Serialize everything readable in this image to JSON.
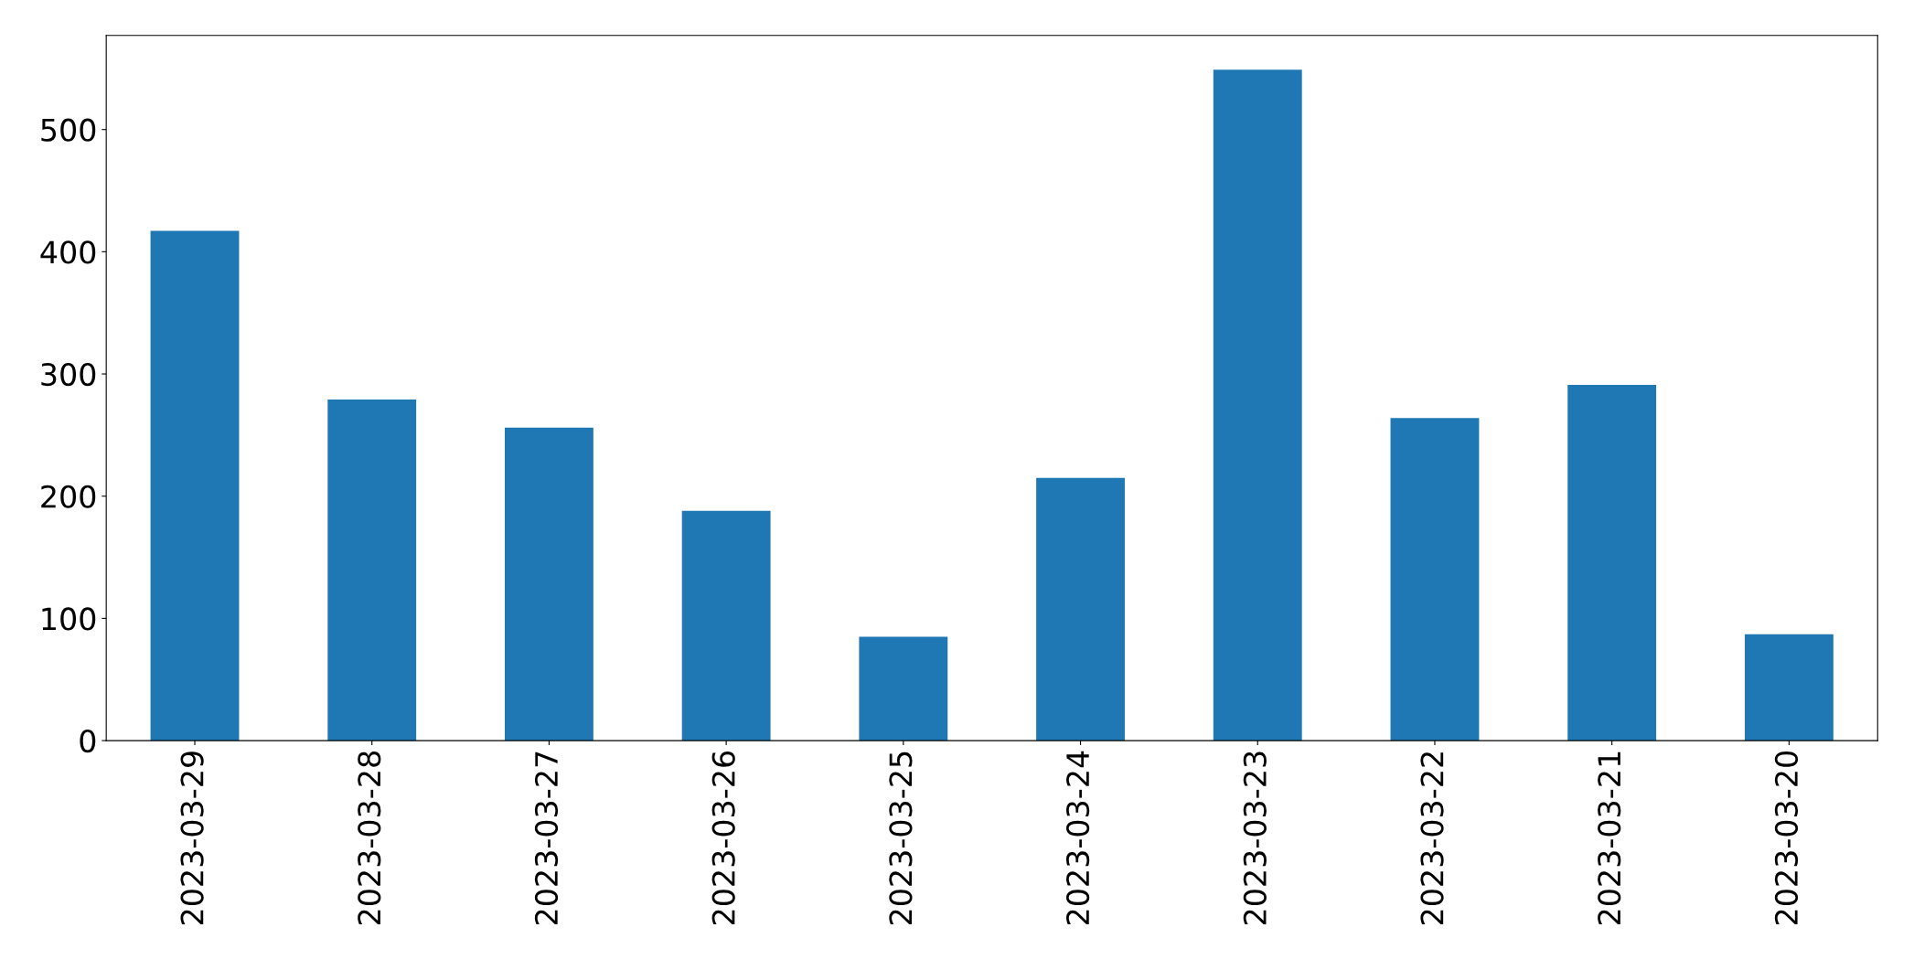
{
  "chart_data": {
    "type": "bar",
    "categories": [
      "2023-03-29",
      "2023-03-28",
      "2023-03-27",
      "2023-03-26",
      "2023-03-25",
      "2023-03-24",
      "2023-03-23",
      "2023-03-22",
      "2023-03-21",
      "2023-03-20"
    ],
    "values": [
      417,
      279,
      256,
      188,
      85,
      215,
      549,
      264,
      291,
      87
    ],
    "color": "#1f77b4",
    "ylim": [
      0,
      577
    ],
    "yticks": [
      0,
      100,
      200,
      300,
      400,
      500
    ],
    "grid": false
  }
}
